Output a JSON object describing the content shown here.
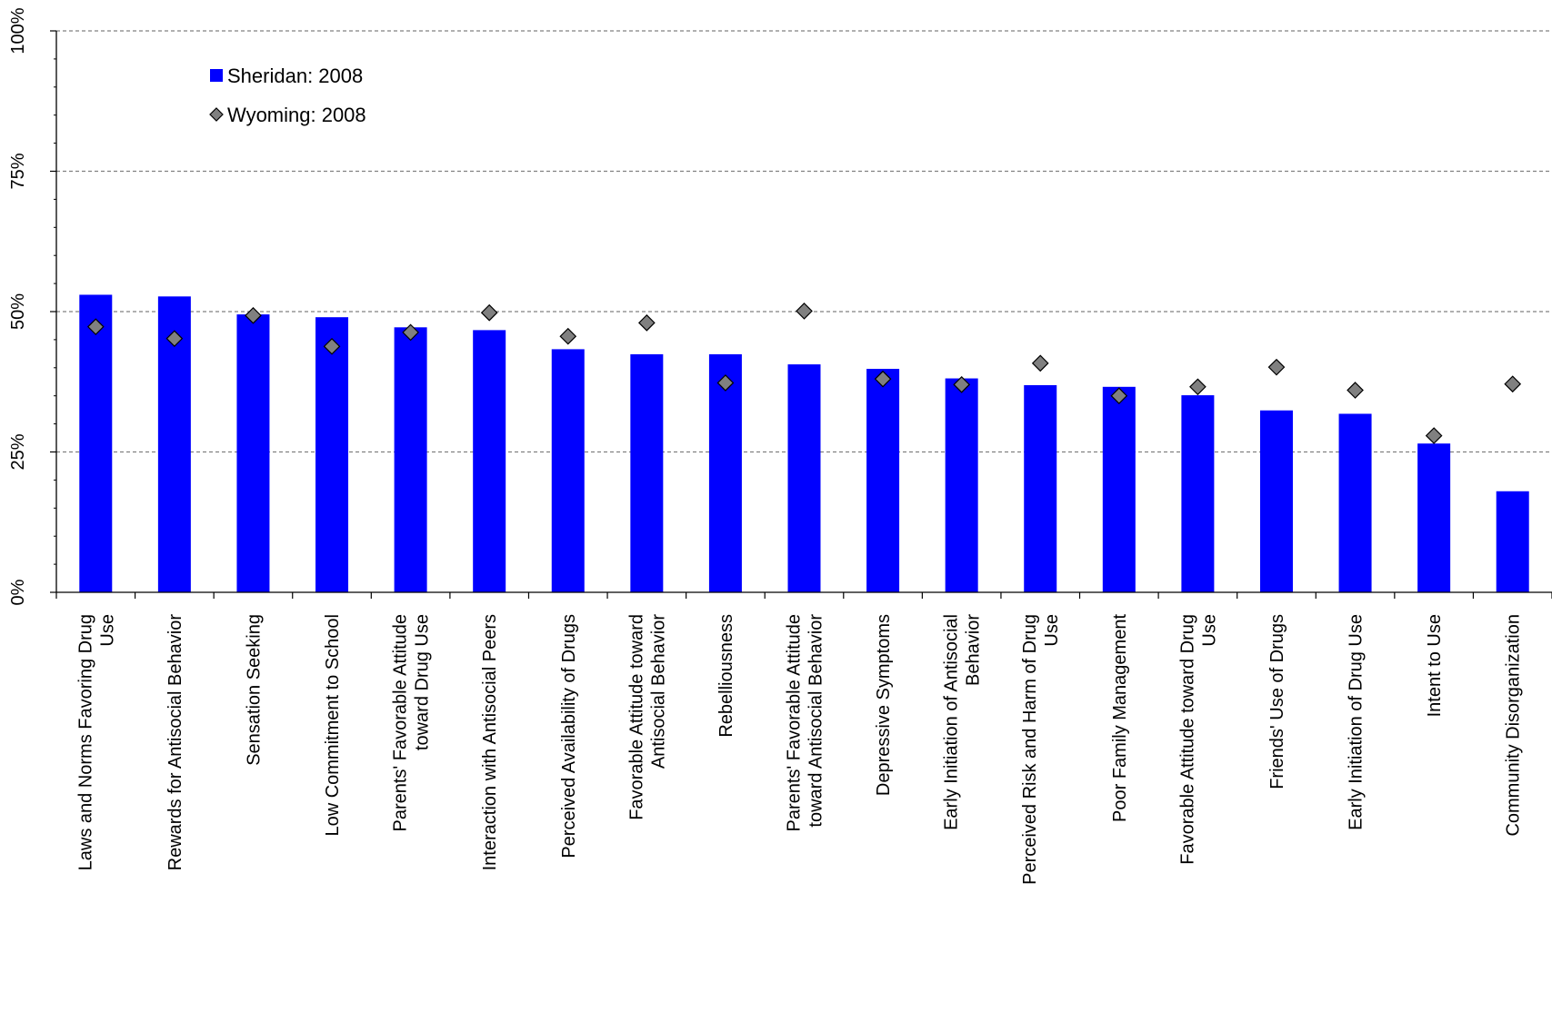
{
  "chart_data": {
    "type": "bar",
    "title": "",
    "xlabel": "",
    "ylabel": "",
    "ylim": [
      0,
      100
    ],
    "yticks": [
      "0%",
      "25%",
      "50%",
      "75%",
      "100%"
    ],
    "grid": "horizontal dashed at 25% intervals",
    "legend_position": "top-left",
    "categories": [
      [
        "Laws and Norms Favoring Drug",
        "Use"
      ],
      [
        "Rewards for Antisocial Behavior"
      ],
      [
        "Sensation Seeking"
      ],
      [
        "Low Commitment to School"
      ],
      [
        "Parents' Favorable Attitude",
        "toward Drug Use"
      ],
      [
        "Interaction with Antisocial Peers"
      ],
      [
        "Perceived Availability of Drugs"
      ],
      [
        "Favorable Attitude toward",
        "Antisocial Behavior"
      ],
      [
        "Rebelliousness"
      ],
      [
        "Parents' Favorable Attitude",
        "toward Antisocial Behavior"
      ],
      [
        "Depressive Symptoms"
      ],
      [
        "Early Initiation of Antisocial",
        "Behavior"
      ],
      [
        "Perceived Risk and Harm of Drug",
        "Use"
      ],
      [
        "Poor Family Management"
      ],
      [
        "Favorable Attitude toward Drug",
        "Use"
      ],
      [
        "Friends' Use of Drugs"
      ],
      [
        "Early Initiation of Drug Use"
      ],
      [
        "Intent to Use"
      ],
      [
        "Community Disorganization"
      ]
    ],
    "series": [
      {
        "name": "Sheridan: 2008",
        "mark": "bar",
        "color": "#0000FF",
        "values": [
          53.0,
          52.7,
          49.5,
          49.0,
          47.2,
          46.7,
          43.3,
          42.4,
          42.4,
          40.6,
          39.8,
          38.1,
          36.9,
          36.6,
          35.1,
          32.4,
          31.8,
          26.5,
          18.0
        ]
      },
      {
        "name": "Wyoming: 2008",
        "mark": "diamond",
        "color": "#808080",
        "values": [
          47.3,
          45.2,
          49.3,
          43.8,
          46.3,
          49.8,
          45.6,
          48.0,
          37.3,
          50.1,
          38.0,
          37.0,
          40.8,
          35.0,
          36.6,
          40.1,
          36.0,
          27.9,
          37.1
        ]
      }
    ]
  }
}
